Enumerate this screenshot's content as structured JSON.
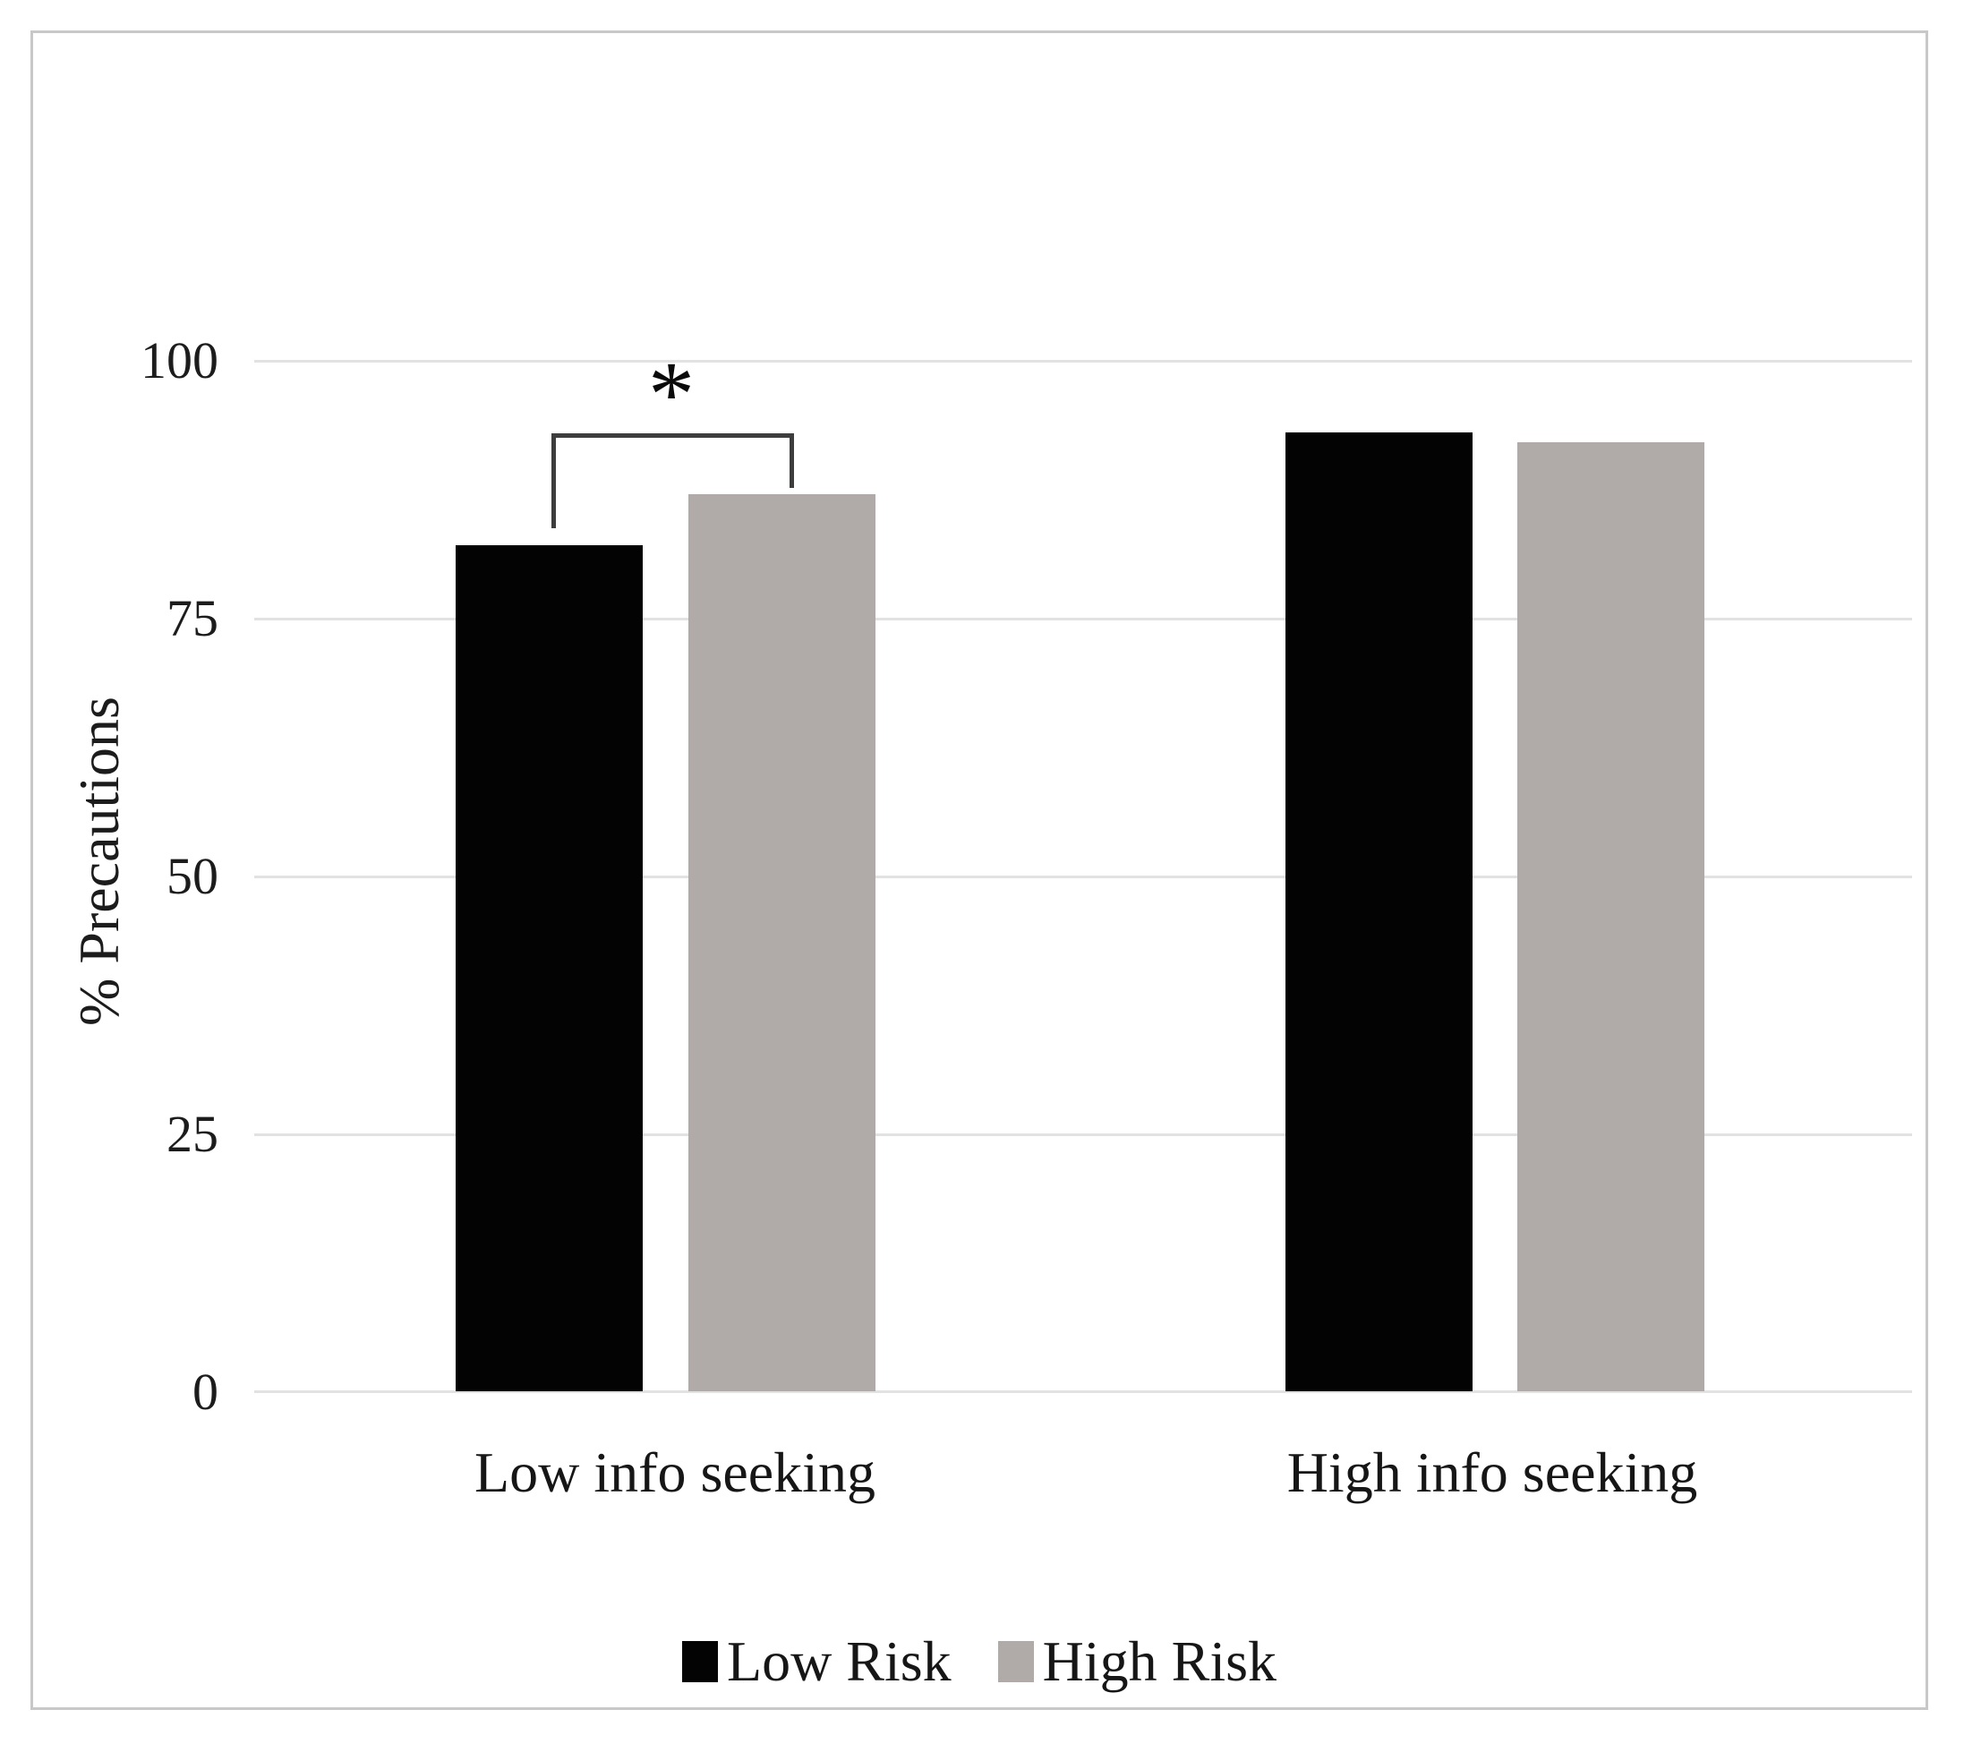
{
  "chart_data": {
    "type": "bar",
    "title": "",
    "categories": [
      "Low info seeking",
      "High info seeking"
    ],
    "series": [
      {
        "name": "Low Risk",
        "color": "#030303",
        "values": [
          82,
          93
        ]
      },
      {
        "name": "High Risk",
        "color": "#b0aba8",
        "values": [
          87,
          92
        ]
      }
    ],
    "xlabel": "",
    "ylabel": "% Precautions",
    "yticks": [
      100,
      75,
      50,
      25,
      0
    ],
    "ylim": [
      0,
      100
    ],
    "grid": "horizontal",
    "gridline_color": "#e2e2e2",
    "legend_position": "bottom-center",
    "annotation": {
      "type": "significance-bracket",
      "symbol": "*",
      "category": "Low info seeking",
      "between": [
        "Low Risk",
        "High Risk"
      ]
    },
    "frame_color": "#c8c8c8"
  }
}
